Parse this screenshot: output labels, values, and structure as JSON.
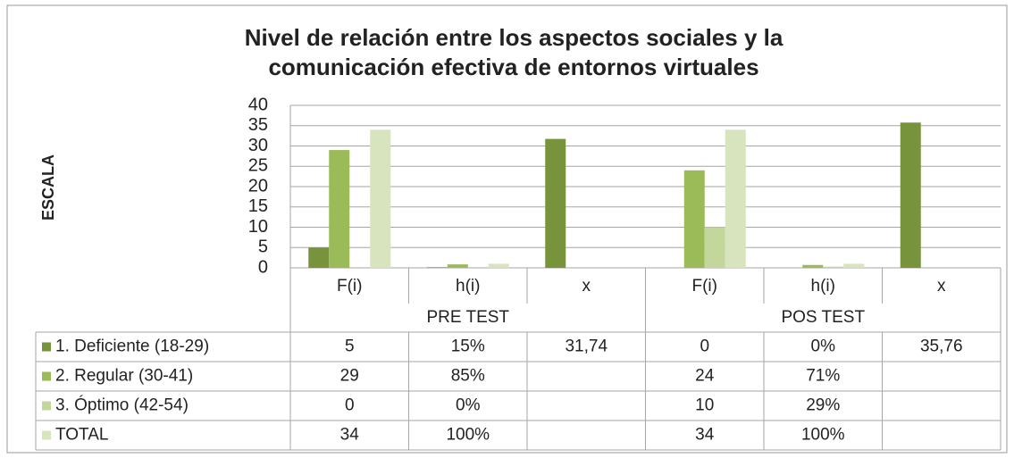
{
  "chart_data": {
    "type": "bar",
    "title": "Nivel de relación entre los aspectos sociales y la comunicación efectiva de entornos virtuales",
    "ylabel": "ESCALA",
    "categories": [
      "F(i)",
      "h(i)",
      "x",
      "F(i)",
      "h(i)",
      "x"
    ],
    "groups": [
      "PRE TEST",
      "POS TEST"
    ],
    "series": [
      {
        "name": "1. Deficiente (18-29)",
        "color": "#77933c",
        "values": [
          5,
          0.15,
          31.74,
          0,
          0,
          35.76
        ],
        "value_labels": [
          "5",
          "15%",
          "31,74",
          "0",
          "0%",
          "35,76"
        ]
      },
      {
        "name": "2. Regular (30-41)",
        "color": "#9bbb59",
        "values": [
          29,
          0.85,
          null,
          24,
          0.71,
          null
        ],
        "value_labels": [
          "29",
          "85%",
          null,
          "24",
          "71%",
          null
        ]
      },
      {
        "name": "3. Óptimo (42-54)",
        "color": "#c3d69b",
        "values": [
          0,
          0,
          null,
          10,
          0.29,
          null
        ],
        "value_labels": [
          "0",
          "0%",
          null,
          "10",
          "29%",
          null
        ]
      },
      {
        "name": "TOTAL",
        "color": "#d7e4bd",
        "values": [
          34,
          1,
          null,
          34,
          1,
          null
        ],
        "value_labels": [
          "34",
          "100%",
          null,
          "34",
          "100%",
          null
        ]
      }
    ],
    "ylim": [
      0,
      40
    ],
    "yticks": [
      0,
      5,
      10,
      15,
      20,
      25,
      30,
      35,
      40
    ],
    "grid": true
  }
}
